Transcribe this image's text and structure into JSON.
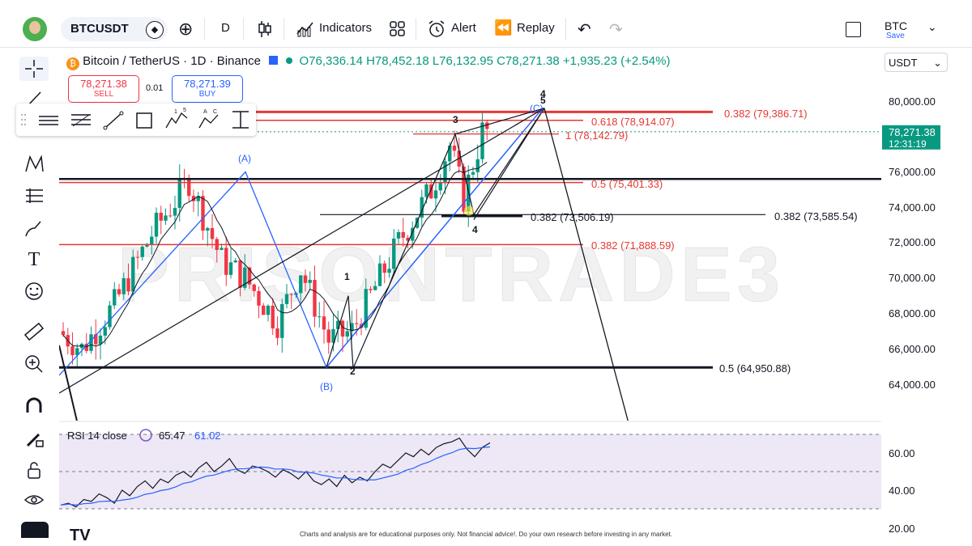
{
  "topbar": {
    "symbol": "BTCUSDT",
    "interval": "D",
    "indicators_label": "Indicators",
    "alert_label": "Alert",
    "replay_label": "Replay",
    "layout_title": "BTC",
    "save_label": "Save"
  },
  "legend": {
    "title": "Bitcoin / TetherUS · 1D · Binance",
    "open": "O76,336.14",
    "high": "H78,452.18",
    "low": "L76,132.95",
    "close": "C78,271.38",
    "change": "+1,935.23 (+2.54%)"
  },
  "trade": {
    "sell_price": "78,271.38",
    "sell_label": "SELL",
    "spread": "0.01",
    "buy_price": "78,271.39",
    "buy_label": "BUY"
  },
  "currency": "USDT",
  "price_axis": [
    "80,000.00",
    "76,000.00",
    "74,000.00",
    "72,000.00",
    "70,000.00",
    "68,000.00",
    "66,000.00",
    "64,000.00"
  ],
  "price_axis_y": [
    125,
    212,
    256,
    299,
    343,
    387,
    431,
    475
  ],
  "last_price": {
    "price": "78,271.38",
    "countdown": "12:31:19"
  },
  "rsi": {
    "label": "RSI 14 close",
    "value": "65.47",
    "ma": "61.02",
    "axis": [
      "60.00",
      "40.00",
      "20.00"
    ]
  },
  "annotations": {
    "fib_0618": "0.618 (78,914.07)",
    "fib_1": "1 (78,142.79)",
    "fib_0382_top": "0.382 (79,386.71)",
    "fib_05_mid": "0.5 (75,401.33)",
    "fib_0382_mid": "0.382 (73,506.19)",
    "fib_0382_right": "0.382 (73,585.54)",
    "fib_0382_low": "0.382 (71,888.59)",
    "fib_05_low": "0.5 (64,950.88)",
    "wave_A": "(A)",
    "wave_B": "(B)",
    "wave_C": "(C)",
    "wave_1": "1",
    "wave_2": "2",
    "wave_3": "3",
    "wave_4": "4",
    "wave_4_top": "4",
    "wave_5": "5",
    "watermark": "PRISONTRADE3"
  },
  "colors": {
    "up": "#089981",
    "down": "#f23645",
    "fib_red": "#e53935",
    "blue": "#2962ff",
    "rsi_line": "#131722",
    "rsi_ma": "#2962ff",
    "rsi_band": "#ede7f6"
  },
  "footer": "Charts and analysis are for educational purposes only. Not financial advice!. Do your own research before investing in any market."
}
